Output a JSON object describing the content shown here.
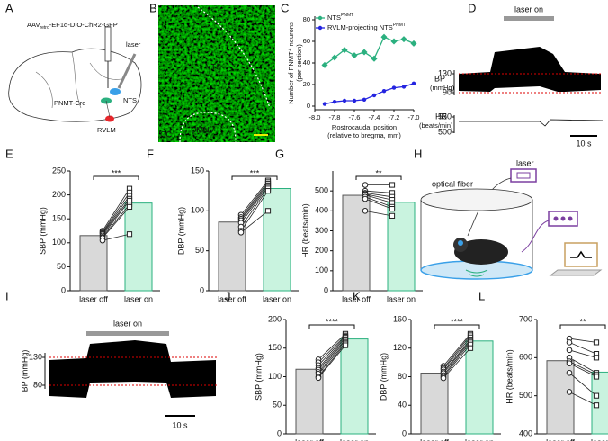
{
  "figure": {
    "panel_labels": [
      "A",
      "B",
      "C",
      "D",
      "E",
      "F",
      "G",
      "H",
      "I",
      "J",
      "K",
      "L"
    ],
    "a": {
      "vector": "AAV",
      "vector_sub": "retro",
      "vector_rest": "-EF1α-DIO-ChR2-GFP",
      "laser": "laser",
      "mouse": "PNMT-Cre",
      "nts": "NTS",
      "rvlm": "RVLM"
    },
    "b": {
      "nts": "NTS",
      "dmnv": "DMNV",
      "cc": "CC"
    },
    "d": {
      "laser": "laser on",
      "bp_label": [
        "BP",
        "(mmHg)"
      ],
      "bp_ticks": [
        130,
        90
      ],
      "hr_label": [
        "HR",
        "(beats/min)"
      ],
      "hr_ticks": [
        550,
        500
      ],
      "scale": "10 s"
    },
    "h": {
      "fiber": "optical fiber",
      "laser": "laser"
    },
    "i": {
      "laser": "laser on",
      "bp_label": "BP (mmHg)",
      "bp_ticks": [
        130,
        80
      ],
      "scale": "10 s"
    }
  },
  "chart_data": [
    {
      "type": "line",
      "ylabel": [
        "Number of PNMT⁺ neurons",
        "(per section)"
      ],
      "xlabel": [
        "Rostrocaudal position",
        "(relative to bregma, mm)"
      ],
      "x": [
        -7.9,
        -7.8,
        -7.7,
        -7.6,
        -7.5,
        -7.4,
        -7.3,
        -7.2,
        -7.1,
        -7.0
      ],
      "series": [
        {
          "name": "NTS",
          "name_sup": "PNMT",
          "color": "#2bb07f",
          "values": [
            38,
            45,
            52,
            47,
            50,
            44,
            64,
            60,
            62,
            58
          ]
        },
        {
          "name": "RVLM-projecting NTS",
          "name_sup": "PNMT",
          "color": "#2424e0",
          "values": [
            2,
            4,
            5,
            5,
            6,
            10,
            14,
            17,
            18,
            21
          ]
        }
      ],
      "xlim": [
        -8.0,
        -7.0
      ],
      "xticks": [
        {
          "value": -8.0,
          "label": "-8.0"
        },
        -7.8,
        -7.6,
        -7.4,
        -7.2,
        {
          "value": -7.0,
          "label": "-7.0"
        }
      ],
      "ylim": [
        0,
        80
      ],
      "yticks": [
        0,
        20,
        40,
        60,
        80
      ]
    },
    {
      "type": "bar",
      "ylabel": "SBP (mmHg)",
      "categories": [
        "laser off",
        "laser on"
      ],
      "values": [
        115,
        183
      ],
      "colors": [
        "#d9d9d9",
        "#c9f3df"
      ],
      "paired_values": [
        [
          125,
          122,
          120,
          118,
          115,
          112,
          110,
          105
        ],
        [
          213,
          205,
          198,
          192,
          188,
          180,
          175,
          118
        ]
      ],
      "significance": "***",
      "ylim": [
        0,
        250
      ],
      "yticks": [
        0,
        50,
        100,
        150,
        200,
        250
      ]
    },
    {
      "type": "bar",
      "ylabel": "DBP (mmHg)",
      "categories": [
        "laser off",
        "laser on"
      ],
      "values": [
        86,
        128
      ],
      "colors": [
        "#d9d9d9",
        "#c9f3df"
      ],
      "paired_values": [
        [
          95,
          92,
          90,
          88,
          85,
          80,
          75,
          73
        ],
        [
          138,
          136,
          134,
          132,
          130,
          128,
          125,
          100
        ]
      ],
      "significance": "***",
      "ylim": [
        0,
        150
      ],
      "yticks": [
        0,
        50,
        100,
        150
      ]
    },
    {
      "type": "bar",
      "ylabel": "HR (beats/min)",
      "categories": [
        "laser off",
        "laser on"
      ],
      "values": [
        478,
        443
      ],
      "colors": [
        "#d9d9d9",
        "#c9f3df"
      ],
      "paired_values": [
        [
          530,
          500,
          490,
          485,
          480,
          470,
          460,
          400
        ],
        [
          530,
          490,
          470,
          455,
          440,
          420,
          410,
          375
        ]
      ],
      "significance": "**",
      "ylim": [
        0,
        600
      ],
      "yticks": [
        0,
        100,
        200,
        300,
        400,
        500
      ]
    },
    {
      "type": "bar",
      "ylabel": "SBP (mmHg)",
      "categories": [
        "laser off",
        "laser on"
      ],
      "values": [
        113,
        166
      ],
      "colors": [
        "#d9d9d9",
        "#c9f3df"
      ],
      "paired_values": [
        [
          130,
          125,
          120,
          115,
          112,
          108,
          105,
          100,
          98
        ],
        [
          175,
          172,
          170,
          168,
          165,
          163,
          160,
          158,
          155
        ]
      ],
      "significance": "****",
      "ylim": [
        0,
        200
      ],
      "yticks": [
        0,
        50,
        100,
        150,
        200
      ]
    },
    {
      "type": "bar",
      "ylabel": "DBP (mmHg)",
      "categories": [
        "laser off",
        "laser on"
      ],
      "values": [
        85,
        130
      ],
      "colors": [
        "#d9d9d9",
        "#c9f3df"
      ],
      "paired_values": [
        [
          95,
          92,
          90,
          87,
          85,
          82,
          80,
          78
        ],
        [
          140,
          138,
          135,
          132,
          130,
          128,
          125,
          120
        ]
      ],
      "significance": "****",
      "ylim": [
        0,
        160
      ],
      "yticks": [
        0,
        40,
        80,
        120,
        160
      ]
    },
    {
      "type": "bar",
      "ylabel": "HR (beats/min)",
      "categories": [
        "laser off",
        "laser on"
      ],
      "values": [
        592,
        562
      ],
      "colors": [
        "#d9d9d9",
        "#c9f3df"
      ],
      "paired_values": [
        [
          650,
          640,
          620,
          600,
          590,
          585,
          560,
          510
        ],
        [
          640,
          610,
          600,
          560,
          555,
          550,
          500,
          475
        ]
      ],
      "significance": "**",
      "ylim": [
        400,
        700
      ],
      "yticks": [
        400,
        500,
        600,
        700
      ]
    }
  ]
}
